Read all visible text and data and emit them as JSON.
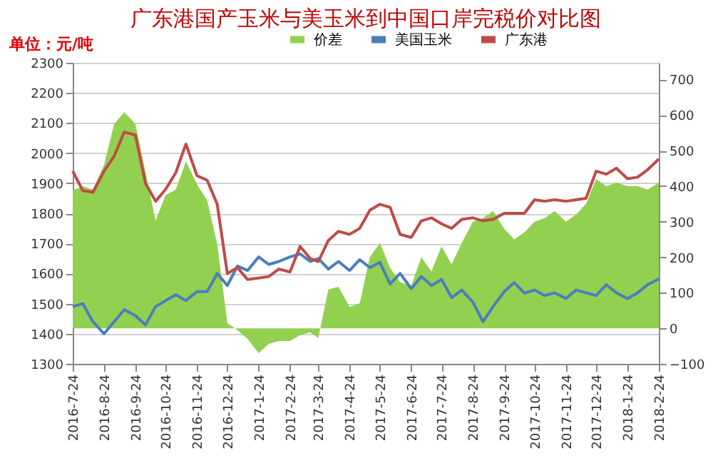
{
  "chart_data": {
    "type": "line",
    "title": "广东港国产玉米与美玉米到中国口岸完税价对比图",
    "ylabel": "单位：元/吨",
    "x": [
      "2016-07-24",
      "2016-08-03",
      "2016-08-13",
      "2016-08-24",
      "2016-09-03",
      "2016-09-13",
      "2016-09-24",
      "2016-10-04",
      "2016-10-14",
      "2016-10-24",
      "2016-11-03",
      "2016-11-13",
      "2016-11-24",
      "2016-12-04",
      "2016-12-14",
      "2016-12-24",
      "2017-01-03",
      "2017-01-13",
      "2017-01-24",
      "2017-02-03",
      "2017-02-13",
      "2017-02-24",
      "2017-03-06",
      "2017-03-16",
      "2017-03-24",
      "2017-04-03",
      "2017-04-13",
      "2017-04-24",
      "2017-05-04",
      "2017-05-14",
      "2017-05-24",
      "2017-06-03",
      "2017-06-13",
      "2017-06-24",
      "2017-07-04",
      "2017-07-14",
      "2017-07-24",
      "2017-08-03",
      "2017-08-13",
      "2017-08-24",
      "2017-09-03",
      "2017-09-13",
      "2017-09-24",
      "2017-10-04",
      "2017-10-14",
      "2017-10-24",
      "2017-11-03",
      "2017-11-13",
      "2017-11-24",
      "2017-12-04",
      "2017-12-14",
      "2017-12-24",
      "2018-01-03",
      "2018-01-13",
      "2018-01-24",
      "2018-02-03",
      "2018-02-13",
      "2018-02-24"
    ],
    "series": [
      {
        "name": "价差",
        "type": "area",
        "axis": "y2",
        "color": "#92d050",
        "values": [
          388,
          400,
          390,
          460,
          575,
          608,
          575,
          440,
          303,
          375,
          390,
          470,
          405,
          360,
          236,
          15,
          -5,
          -30,
          -70,
          -44,
          -36,
          -36,
          -19,
          -11,
          -27,
          109,
          117,
          60,
          70,
          200,
          240,
          170,
          130,
          120,
          200,
          160,
          230,
          180,
          240,
          300,
          310,
          330,
          280,
          250,
          270,
          300,
          310,
          330,
          300,
          320,
          350,
          420,
          400,
          410,
          400,
          400,
          390,
          410
        ]
      },
      {
        "name": "美国玉米",
        "color": "#4a7ebb",
        "values": [
          1490,
          1500,
          1440,
          1400,
          1440,
          1480,
          1460,
          1430,
          1490,
          1510,
          1530,
          1510,
          1540,
          1540,
          1600,
          1560,
          1625,
          1610,
          1655,
          1630,
          1640,
          1655,
          1665,
          1640,
          1650,
          1615,
          1640,
          1610,
          1646,
          1620,
          1637,
          1565,
          1600,
          1550,
          1590,
          1560,
          1580,
          1520,
          1545,
          1505,
          1440,
          1490,
          1540,
          1570,
          1535,
          1545,
          1527,
          1536,
          1517,
          1545,
          1536,
          1527,
          1563,
          1536,
          1517,
          1536,
          1563,
          1582
        ]
      },
      {
        "name": "广东港",
        "color": "#be4b48",
        "values": [
          1940,
          1875,
          1870,
          1940,
          1990,
          2070,
          2060,
          1900,
          1840,
          1880,
          1935,
          2030,
          1925,
          1910,
          1830,
          1600,
          1620,
          1580,
          1585,
          1590,
          1615,
          1605,
          1690,
          1650,
          1640,
          1710,
          1740,
          1730,
          1750,
          1810,
          1830,
          1820,
          1730,
          1720,
          1775,
          1785,
          1765,
          1750,
          1780,
          1785,
          1775,
          1780,
          1800,
          1800,
          1800,
          1845,
          1840,
          1845,
          1840,
          1845,
          1850,
          1940,
          1930,
          1950,
          1915,
          1920,
          1945,
          1980
        ]
      }
    ],
    "xlim": [
      "2016-07-24",
      "2018-02-24"
    ],
    "xticks": [
      {
        "value": "2016-07-24",
        "label": "2016-7-24"
      },
      {
        "value": "2016-08-24",
        "label": "2016-8-24"
      },
      {
        "value": "2016-09-24",
        "label": "2016-9-24"
      },
      {
        "value": "2016-10-24",
        "label": "2016-10-24"
      },
      {
        "value": "2016-11-24",
        "label": "2016-11-24"
      },
      {
        "value": "2016-12-24",
        "label": "2016-12-24"
      },
      {
        "value": "2017-01-24",
        "label": "2017-1-24"
      },
      {
        "value": "2017-02-24",
        "label": "2017-2-24"
      },
      {
        "value": "2017-03-24",
        "label": "2017-3-24"
      },
      {
        "value": "2017-04-24",
        "label": "2017-4-24"
      },
      {
        "value": "2017-05-24",
        "label": "2017-5-24"
      },
      {
        "value": "2017-06-24",
        "label": "2017-6-24"
      },
      {
        "value": "2017-07-24",
        "label": "2017-7-24"
      },
      {
        "value": "2017-08-24",
        "label": "2017-8-24"
      },
      {
        "value": "2017-09-24",
        "label": "2017-9-24"
      },
      {
        "value": "2017-10-24",
        "label": "2017-10-24"
      },
      {
        "value": "2017-11-24",
        "label": "2017-11-24"
      },
      {
        "value": "2017-12-24",
        "label": "2017-12-24"
      },
      {
        "value": "2018-01-24",
        "label": "2018-1-24"
      },
      {
        "value": "2018-02-24",
        "label": "2018-2-24"
      }
    ],
    "ylim": [
      1300,
      2300
    ],
    "yticks": [
      1300,
      1400,
      1500,
      1600,
      1700,
      1800,
      1900,
      2000,
      2100,
      2200,
      2300
    ],
    "y2lim": [
      -100,
      747
    ],
    "y2ticks": [
      -100,
      0,
      100,
      200,
      300,
      400,
      500,
      600,
      700
    ],
    "grid": "y",
    "legend": "top",
    "line_style": "solid"
  }
}
